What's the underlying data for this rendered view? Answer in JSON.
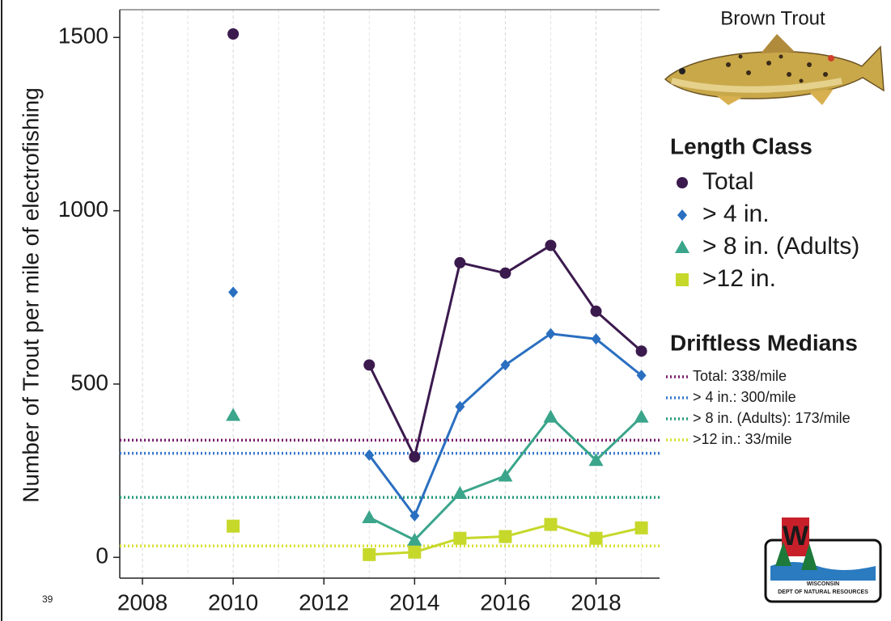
{
  "chart_data": {
    "type": "line",
    "y_label": "Number of Trout per mile of electrofishing",
    "x": [
      2010,
      2011,
      2012,
      2013,
      2014,
      2015,
      2016,
      2017,
      2018,
      2019
    ],
    "series": [
      {
        "name": "Total",
        "color": "#3b1a4e",
        "marker": "circle",
        "values": [
          1510,
          null,
          null,
          555,
          290,
          850,
          820,
          900,
          710,
          595
        ]
      },
      {
        "name": "> 4 in.",
        "color": "#2a6fc0",
        "marker": "diamond",
        "values": [
          765,
          null,
          null,
          295,
          120,
          435,
          555,
          645,
          630,
          525
        ]
      },
      {
        "name": "> 8 in. (Adults)",
        "color": "#3aa58a",
        "marker": "triangle",
        "values": [
          410,
          null,
          null,
          115,
          50,
          185,
          235,
          405,
          280,
          405
        ]
      },
      {
        "name": ">12 in.",
        "color": "#c6d82a",
        "marker": "square",
        "values": [
          90,
          null,
          null,
          8,
          15,
          55,
          60,
          95,
          55,
          85
        ]
      }
    ],
    "xlim": [
      2007.5,
      2019.4
    ],
    "xticks": [
      2008,
      2010,
      2012,
      2014,
      2016,
      2018
    ],
    "ylim": [
      -60,
      1580
    ],
    "yticks": [
      0,
      500,
      1000,
      1500
    ],
    "grid": true,
    "legend_title": "Length Class",
    "medians": {
      "title": "Driftless Medians",
      "lines": [
        {
          "label": "Total: 338/mile",
          "value": 338,
          "color": "#7a1f6e"
        },
        {
          "label": "> 4 in.: 300/mile",
          "value": 300,
          "color": "#3a78c8"
        },
        {
          "label": "> 8 in. (Adults): 173/mile",
          "value": 173,
          "color": "#2a9a7a"
        },
        {
          "label": ">12 in.: 33/mile",
          "value": 33,
          "color": "#d8e030"
        }
      ]
    }
  },
  "image_caption": "Brown Trout",
  "page_number": "39",
  "logo": {
    "letter": "W",
    "line1": "WISCONSIN",
    "line2": "DEPT OF NATURAL RESOURCES"
  }
}
